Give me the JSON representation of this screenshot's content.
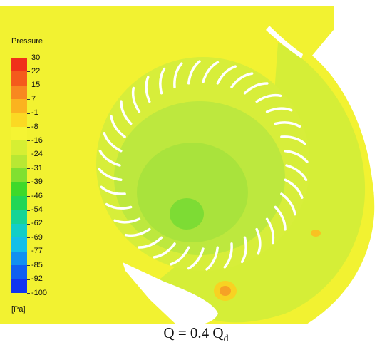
{
  "legend": {
    "title": "Pressure",
    "unit": "[Pa]",
    "ticks": [
      "30",
      "22",
      "15",
      "7",
      "-1",
      "-8",
      "-16",
      "-24",
      "-31",
      "-39",
      "-46",
      "-54",
      "-62",
      "-69",
      "-77",
      "-85",
      "-92",
      "-100"
    ],
    "colors": [
      "#f0301a",
      "#f45a1c",
      "#f88820",
      "#fbb31f",
      "#fbd923",
      "#f5f433",
      "#d6ef33",
      "#b8e833",
      "#80e030",
      "#3ed92a",
      "#22d655",
      "#16d495",
      "#12cec6",
      "#14bfe8",
      "#1290f0",
      "#1060f0",
      "#1034f0"
    ]
  },
  "caption": {
    "main": "Q = 0.4 Q",
    "sub": "d"
  },
  "colors": {
    "background_field": "#f2f231",
    "impeller_zone": "#d7ee3a",
    "hub_zone": "#bde83e",
    "low_pressure_core": "#7ddc34",
    "high_pressure_spot": "#f6a125",
    "blade": "#ffffff"
  },
  "blade_count": 36
}
